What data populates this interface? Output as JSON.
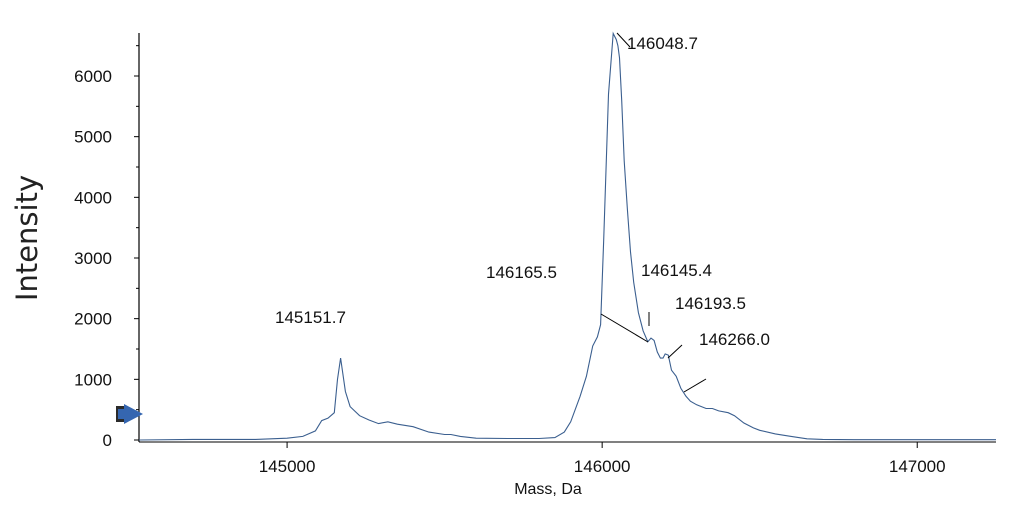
{
  "chart_data": {
    "type": "line",
    "title": "",
    "xlabel": "Mass, Da",
    "ylabel": "Intensity",
    "xlim": [
      144530,
      147250
    ],
    "ylim": [
      0,
      6800
    ],
    "x_ticks": [
      145000,
      146000,
      147000
    ],
    "x_tick_labels": [
      "145000",
      "146000",
      "147000"
    ],
    "y_ticks": [
      0,
      1000,
      2000,
      3000,
      4000,
      5000,
      6000
    ],
    "y_tick_labels": [
      "0",
      "1000",
      "2000",
      "3000",
      "4000",
      "5000",
      "6000"
    ],
    "grid": false,
    "legend": "none",
    "line_color": "#3b5f8f",
    "series": [
      {
        "x": [
          144530,
          144700,
          144900,
          145000,
          145050,
          145090,
          145110,
          145130,
          145150,
          145160,
          145170,
          145185,
          145200,
          145230,
          145260,
          145290,
          145320,
          145350,
          145400,
          145450,
          145500,
          145520,
          145550,
          145600,
          145700,
          145800,
          145850,
          145880,
          145900,
          145930,
          145950,
          145970,
          145985,
          145995,
          146005,
          146020,
          146035,
          146045,
          146050,
          146055,
          146062,
          146070,
          146080,
          146090,
          146100,
          146115,
          146130,
          146145,
          146155,
          146165,
          146175,
          146185,
          146193,
          146200,
          146210,
          146220,
          146235,
          146250,
          146266,
          146280,
          146300,
          146330,
          146350,
          146370,
          146400,
          146420,
          146450,
          146480,
          146500,
          146550,
          146600,
          146650,
          146700,
          146800,
          146900,
          147000,
          147250
        ],
        "y": [
          0,
          10,
          10,
          30,
          60,
          150,
          320,
          360,
          450,
          1000,
          1350,
          800,
          550,
          400,
          330,
          270,
          300,
          260,
          220,
          130,
          90,
          90,
          60,
          30,
          25,
          25,
          40,
          130,
          300,
          720,
          1050,
          1550,
          1700,
          1900,
          3300,
          5700,
          6700,
          6600,
          6500,
          6300,
          5600,
          4600,
          3800,
          3100,
          2600,
          2100,
          1800,
          1620,
          1680,
          1640,
          1450,
          1350,
          1350,
          1420,
          1400,
          1150,
          1050,
          850,
          720,
          640,
          580,
          520,
          520,
          480,
          450,
          400,
          280,
          200,
          160,
          100,
          60,
          20,
          10,
          5,
          5,
          5,
          5
        ]
      }
    ],
    "annotations": [
      {
        "text": "145151.7",
        "peak_x": 145151.7
      },
      {
        "text": "146048.7",
        "peak_x": 146048.7
      },
      {
        "text": "146165.5",
        "peak_x": 146165.5
      },
      {
        "text": "146145.4",
        "peak_x": 146145.4
      },
      {
        "text": "146193.5",
        "peak_x": 146193.5
      },
      {
        "text": "146266.0",
        "peak_x": 146266.0
      }
    ]
  }
}
